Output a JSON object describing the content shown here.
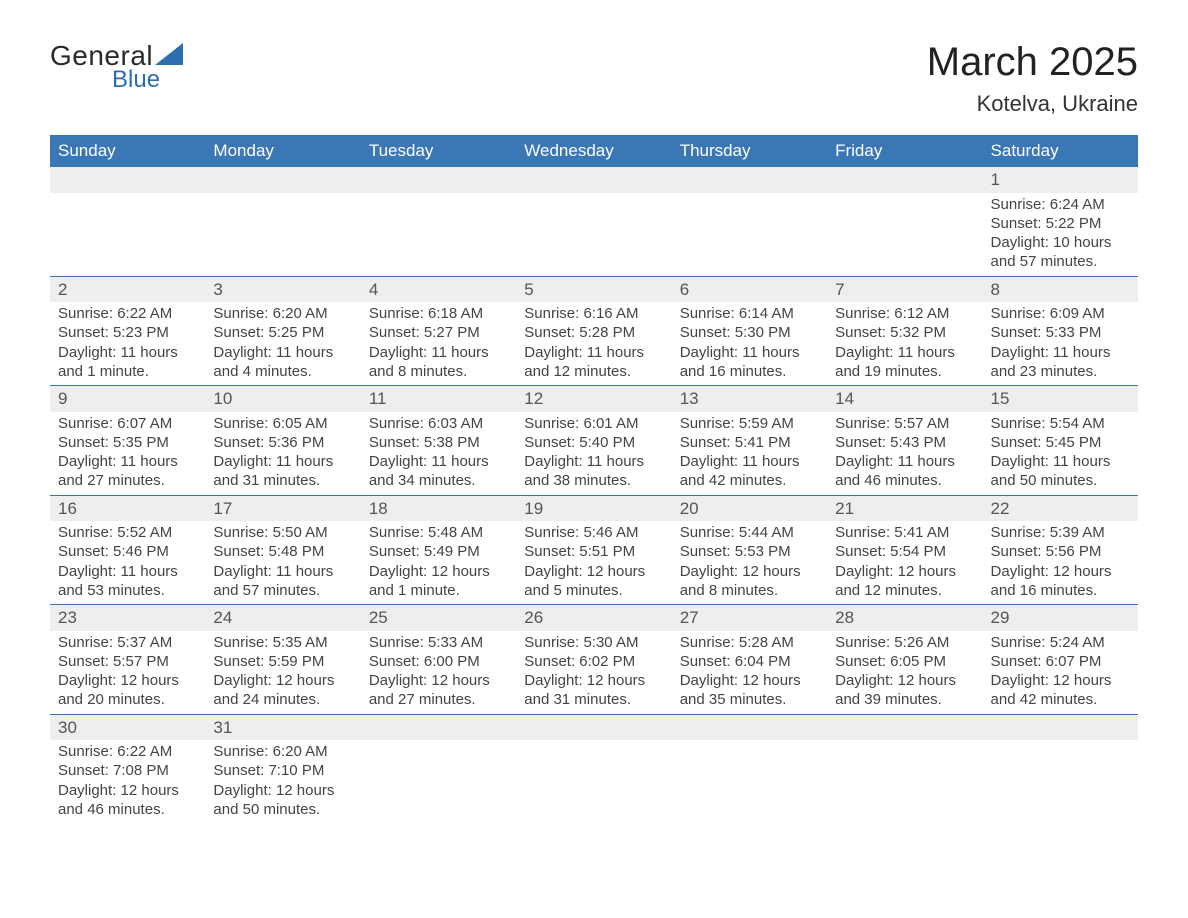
{
  "brand": {
    "general": "General",
    "blue": "Blue",
    "accent": "#2e6eb0"
  },
  "title": "March 2025",
  "location": "Kotelva, Ukraine",
  "colors": {
    "header_bg": "#3a77b4",
    "header_text": "#ffffff",
    "daynum_bg": "#eeeeee",
    "row_divider": "#3a77b4",
    "body_text": "#444444",
    "background": "#ffffff"
  },
  "typography": {
    "title_fontsize": 40,
    "location_fontsize": 22,
    "weekday_fontsize": 17,
    "cell_fontsize": 15
  },
  "weekdays": [
    "Sunday",
    "Monday",
    "Tuesday",
    "Wednesday",
    "Thursday",
    "Friday",
    "Saturday"
  ],
  "weeks": [
    [
      null,
      null,
      null,
      null,
      null,
      null,
      {
        "n": "1",
        "sr": "Sunrise: 6:24 AM",
        "ss": "Sunset: 5:22 PM",
        "d1": "Daylight: 10 hours",
        "d2": "and 57 minutes."
      }
    ],
    [
      {
        "n": "2",
        "sr": "Sunrise: 6:22 AM",
        "ss": "Sunset: 5:23 PM",
        "d1": "Daylight: 11 hours",
        "d2": "and 1 minute."
      },
      {
        "n": "3",
        "sr": "Sunrise: 6:20 AM",
        "ss": "Sunset: 5:25 PM",
        "d1": "Daylight: 11 hours",
        "d2": "and 4 minutes."
      },
      {
        "n": "4",
        "sr": "Sunrise: 6:18 AM",
        "ss": "Sunset: 5:27 PM",
        "d1": "Daylight: 11 hours",
        "d2": "and 8 minutes."
      },
      {
        "n": "5",
        "sr": "Sunrise: 6:16 AM",
        "ss": "Sunset: 5:28 PM",
        "d1": "Daylight: 11 hours",
        "d2": "and 12 minutes."
      },
      {
        "n": "6",
        "sr": "Sunrise: 6:14 AM",
        "ss": "Sunset: 5:30 PM",
        "d1": "Daylight: 11 hours",
        "d2": "and 16 minutes."
      },
      {
        "n": "7",
        "sr": "Sunrise: 6:12 AM",
        "ss": "Sunset: 5:32 PM",
        "d1": "Daylight: 11 hours",
        "d2": "and 19 minutes."
      },
      {
        "n": "8",
        "sr": "Sunrise: 6:09 AM",
        "ss": "Sunset: 5:33 PM",
        "d1": "Daylight: 11 hours",
        "d2": "and 23 minutes."
      }
    ],
    [
      {
        "n": "9",
        "sr": "Sunrise: 6:07 AM",
        "ss": "Sunset: 5:35 PM",
        "d1": "Daylight: 11 hours",
        "d2": "and 27 minutes."
      },
      {
        "n": "10",
        "sr": "Sunrise: 6:05 AM",
        "ss": "Sunset: 5:36 PM",
        "d1": "Daylight: 11 hours",
        "d2": "and 31 minutes."
      },
      {
        "n": "11",
        "sr": "Sunrise: 6:03 AM",
        "ss": "Sunset: 5:38 PM",
        "d1": "Daylight: 11 hours",
        "d2": "and 34 minutes."
      },
      {
        "n": "12",
        "sr": "Sunrise: 6:01 AM",
        "ss": "Sunset: 5:40 PM",
        "d1": "Daylight: 11 hours",
        "d2": "and 38 minutes."
      },
      {
        "n": "13",
        "sr": "Sunrise: 5:59 AM",
        "ss": "Sunset: 5:41 PM",
        "d1": "Daylight: 11 hours",
        "d2": "and 42 minutes."
      },
      {
        "n": "14",
        "sr": "Sunrise: 5:57 AM",
        "ss": "Sunset: 5:43 PM",
        "d1": "Daylight: 11 hours",
        "d2": "and 46 minutes."
      },
      {
        "n": "15",
        "sr": "Sunrise: 5:54 AM",
        "ss": "Sunset: 5:45 PM",
        "d1": "Daylight: 11 hours",
        "d2": "and 50 minutes."
      }
    ],
    [
      {
        "n": "16",
        "sr": "Sunrise: 5:52 AM",
        "ss": "Sunset: 5:46 PM",
        "d1": "Daylight: 11 hours",
        "d2": "and 53 minutes."
      },
      {
        "n": "17",
        "sr": "Sunrise: 5:50 AM",
        "ss": "Sunset: 5:48 PM",
        "d1": "Daylight: 11 hours",
        "d2": "and 57 minutes."
      },
      {
        "n": "18",
        "sr": "Sunrise: 5:48 AM",
        "ss": "Sunset: 5:49 PM",
        "d1": "Daylight: 12 hours",
        "d2": "and 1 minute."
      },
      {
        "n": "19",
        "sr": "Sunrise: 5:46 AM",
        "ss": "Sunset: 5:51 PM",
        "d1": "Daylight: 12 hours",
        "d2": "and 5 minutes."
      },
      {
        "n": "20",
        "sr": "Sunrise: 5:44 AM",
        "ss": "Sunset: 5:53 PM",
        "d1": "Daylight: 12 hours",
        "d2": "and 8 minutes."
      },
      {
        "n": "21",
        "sr": "Sunrise: 5:41 AM",
        "ss": "Sunset: 5:54 PM",
        "d1": "Daylight: 12 hours",
        "d2": "and 12 minutes."
      },
      {
        "n": "22",
        "sr": "Sunrise: 5:39 AM",
        "ss": "Sunset: 5:56 PM",
        "d1": "Daylight: 12 hours",
        "d2": "and 16 minutes."
      }
    ],
    [
      {
        "n": "23",
        "sr": "Sunrise: 5:37 AM",
        "ss": "Sunset: 5:57 PM",
        "d1": "Daylight: 12 hours",
        "d2": "and 20 minutes."
      },
      {
        "n": "24",
        "sr": "Sunrise: 5:35 AM",
        "ss": "Sunset: 5:59 PM",
        "d1": "Daylight: 12 hours",
        "d2": "and 24 minutes."
      },
      {
        "n": "25",
        "sr": "Sunrise: 5:33 AM",
        "ss": "Sunset: 6:00 PM",
        "d1": "Daylight: 12 hours",
        "d2": "and 27 minutes."
      },
      {
        "n": "26",
        "sr": "Sunrise: 5:30 AM",
        "ss": "Sunset: 6:02 PM",
        "d1": "Daylight: 12 hours",
        "d2": "and 31 minutes."
      },
      {
        "n": "27",
        "sr": "Sunrise: 5:28 AM",
        "ss": "Sunset: 6:04 PM",
        "d1": "Daylight: 12 hours",
        "d2": "and 35 minutes."
      },
      {
        "n": "28",
        "sr": "Sunrise: 5:26 AM",
        "ss": "Sunset: 6:05 PM",
        "d1": "Daylight: 12 hours",
        "d2": "and 39 minutes."
      },
      {
        "n": "29",
        "sr": "Sunrise: 5:24 AM",
        "ss": "Sunset: 6:07 PM",
        "d1": "Daylight: 12 hours",
        "d2": "and 42 minutes."
      }
    ],
    [
      {
        "n": "30",
        "sr": "Sunrise: 6:22 AM",
        "ss": "Sunset: 7:08 PM",
        "d1": "Daylight: 12 hours",
        "d2": "and 46 minutes."
      },
      {
        "n": "31",
        "sr": "Sunrise: 6:20 AM",
        "ss": "Sunset: 7:10 PM",
        "d1": "Daylight: 12 hours",
        "d2": "and 50 minutes."
      },
      null,
      null,
      null,
      null,
      null
    ]
  ]
}
